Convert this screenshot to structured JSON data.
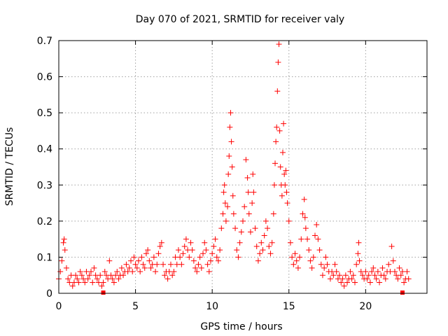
{
  "chart_data": {
    "type": "scatter",
    "title": "Day 070 of 2021, SRMTID for receiver valy",
    "xlabel": "GPS time / hours",
    "ylabel": "SRMTID / TECUs",
    "xlim": [
      0,
      24
    ],
    "ylim": [
      0,
      0.7
    ],
    "xticks": [
      0,
      5,
      10,
      15,
      20
    ],
    "xtick_labels": [
      "0",
      "5",
      "10",
      "15",
      "20"
    ],
    "yticks": [
      0,
      0.1,
      0.2,
      0.3,
      0.4,
      0.5,
      0.6,
      0.7
    ],
    "ytick_labels": [
      "0",
      "0.1",
      "0.2",
      "0.3",
      "0.4",
      "0.5",
      "0.6",
      "0.7"
    ],
    "grid": true,
    "marker": "plus",
    "color": "#ff0000",
    "series": [
      {
        "name": "SRMTID",
        "points": [
          [
            0.0,
            0.04
          ],
          [
            0.1,
            0.06
          ],
          [
            0.2,
            0.09
          ],
          [
            0.3,
            0.14
          ],
          [
            0.35,
            0.15
          ],
          [
            0.4,
            0.12
          ],
          [
            0.5,
            0.07
          ],
          [
            0.6,
            0.04
          ],
          [
            0.7,
            0.03
          ],
          [
            0.8,
            0.05
          ],
          [
            0.9,
            0.02
          ],
          [
            1.0,
            0.03
          ],
          [
            1.1,
            0.05
          ],
          [
            1.2,
            0.04
          ],
          [
            1.3,
            0.03
          ],
          [
            1.4,
            0.06
          ],
          [
            1.5,
            0.05
          ],
          [
            1.6,
            0.04
          ],
          [
            1.7,
            0.03
          ],
          [
            1.8,
            0.06
          ],
          [
            1.9,
            0.04
          ],
          [
            2.0,
            0.05
          ],
          [
            2.1,
            0.06
          ],
          [
            2.2,
            0.03
          ],
          [
            2.3,
            0.07
          ],
          [
            2.4,
            0.05
          ],
          [
            2.5,
            0.04
          ],
          [
            2.6,
            0.03
          ],
          [
            2.7,
            0.05
          ],
          [
            2.8,
            0.02
          ],
          [
            2.9,
            0.03
          ],
          [
            3.0,
            0.06
          ],
          [
            3.1,
            0.05
          ],
          [
            3.2,
            0.04
          ],
          [
            3.3,
            0.09
          ],
          [
            3.4,
            0.05
          ],
          [
            3.5,
            0.04
          ],
          [
            3.6,
            0.03
          ],
          [
            3.7,
            0.05
          ],
          [
            3.8,
            0.06
          ],
          [
            3.9,
            0.04
          ],
          [
            4.0,
            0.05
          ],
          [
            4.1,
            0.07
          ],
          [
            4.2,
            0.05
          ],
          [
            4.3,
            0.06
          ],
          [
            4.4,
            0.08
          ],
          [
            4.5,
            0.06
          ],
          [
            4.6,
            0.07
          ],
          [
            4.7,
            0.09
          ],
          [
            4.8,
            0.06
          ],
          [
            4.9,
            0.1
          ],
          [
            5.0,
            0.08
          ],
          [
            5.1,
            0.07
          ],
          [
            5.2,
            0.09
          ],
          [
            5.3,
            0.06
          ],
          [
            5.4,
            0.1
          ],
          [
            5.5,
            0.08
          ],
          [
            5.6,
            0.07
          ],
          [
            5.7,
            0.11
          ],
          [
            5.8,
            0.12
          ],
          [
            5.9,
            0.09
          ],
          [
            6.0,
            0.07
          ],
          [
            6.1,
            0.08
          ],
          [
            6.2,
            0.1
          ],
          [
            6.3,
            0.06
          ],
          [
            6.4,
            0.08
          ],
          [
            6.5,
            0.11
          ],
          [
            6.6,
            0.13
          ],
          [
            6.7,
            0.14
          ],
          [
            6.8,
            0.08
          ],
          [
            6.9,
            0.05
          ],
          [
            7.0,
            0.06
          ],
          [
            7.1,
            0.04
          ],
          [
            7.2,
            0.06
          ],
          [
            7.3,
            0.08
          ],
          [
            7.4,
            0.05
          ],
          [
            7.5,
            0.06
          ],
          [
            7.6,
            0.1
          ],
          [
            7.7,
            0.08
          ],
          [
            7.8,
            0.12
          ],
          [
            7.9,
            0.1
          ],
          [
            8.0,
            0.08
          ],
          [
            8.1,
            0.11
          ],
          [
            8.2,
            0.13
          ],
          [
            8.3,
            0.15
          ],
          [
            8.4,
            0.12
          ],
          [
            8.5,
            0.1
          ],
          [
            8.6,
            0.14
          ],
          [
            8.7,
            0.12
          ],
          [
            8.8,
            0.09
          ],
          [
            8.9,
            0.07
          ],
          [
            9.0,
            0.06
          ],
          [
            9.1,
            0.08
          ],
          [
            9.2,
            0.1
          ],
          [
            9.3,
            0.07
          ],
          [
            9.4,
            0.11
          ],
          [
            9.5,
            0.14
          ],
          [
            9.6,
            0.12
          ],
          [
            9.7,
            0.08
          ],
          [
            9.8,
            0.06
          ],
          [
            9.9,
            0.09
          ],
          [
            10.0,
            0.11
          ],
          [
            10.1,
            0.13
          ],
          [
            10.2,
            0.15
          ],
          [
            10.3,
            0.1
          ],
          [
            10.4,
            0.09
          ],
          [
            10.5,
            0.12
          ],
          [
            10.6,
            0.18
          ],
          [
            10.7,
            0.22
          ],
          [
            10.75,
            0.28
          ],
          [
            10.8,
            0.3
          ],
          [
            10.85,
            0.25
          ],
          [
            10.9,
            0.2
          ],
          [
            11.0,
            0.24
          ],
          [
            11.05,
            0.33
          ],
          [
            11.1,
            0.38
          ],
          [
            11.15,
            0.46
          ],
          [
            11.2,
            0.5
          ],
          [
            11.25,
            0.42
          ],
          [
            11.3,
            0.35
          ],
          [
            11.35,
            0.27
          ],
          [
            11.4,
            0.22
          ],
          [
            11.5,
            0.18
          ],
          [
            11.6,
            0.12
          ],
          [
            11.7,
            0.1
          ],
          [
            11.8,
            0.14
          ],
          [
            11.9,
            0.17
          ],
          [
            12.0,
            0.2
          ],
          [
            12.1,
            0.24
          ],
          [
            12.2,
            0.37
          ],
          [
            12.3,
            0.32
          ],
          [
            12.35,
            0.28
          ],
          [
            12.4,
            0.22
          ],
          [
            12.5,
            0.17
          ],
          [
            12.6,
            0.25
          ],
          [
            12.65,
            0.33
          ],
          [
            12.7,
            0.28
          ],
          [
            12.8,
            0.18
          ],
          [
            12.9,
            0.13
          ],
          [
            13.0,
            0.09
          ],
          [
            13.1,
            0.11
          ],
          [
            13.2,
            0.14
          ],
          [
            13.3,
            0.12
          ],
          [
            13.4,
            0.16
          ],
          [
            13.5,
            0.2
          ],
          [
            13.6,
            0.18
          ],
          [
            13.7,
            0.13
          ],
          [
            13.8,
            0.11
          ],
          [
            13.9,
            0.14
          ],
          [
            14.0,
            0.22
          ],
          [
            14.05,
            0.3
          ],
          [
            14.1,
            0.36
          ],
          [
            14.15,
            0.42
          ],
          [
            14.2,
            0.46
          ],
          [
            14.25,
            0.56
          ],
          [
            14.3,
            0.64
          ],
          [
            14.35,
            0.69
          ],
          [
            14.4,
            0.45
          ],
          [
            14.45,
            0.35
          ],
          [
            14.5,
            0.3
          ],
          [
            14.55,
            0.27
          ],
          [
            14.6,
            0.39
          ],
          [
            14.65,
            0.47
          ],
          [
            14.7,
            0.33
          ],
          [
            14.75,
            0.3
          ],
          [
            14.8,
            0.34
          ],
          [
            14.85,
            0.28
          ],
          [
            14.9,
            0.25
          ],
          [
            15.0,
            0.2
          ],
          [
            15.1,
            0.14
          ],
          [
            15.2,
            0.1
          ],
          [
            15.3,
            0.08
          ],
          [
            15.4,
            0.11
          ],
          [
            15.5,
            0.09
          ],
          [
            15.6,
            0.07
          ],
          [
            15.7,
            0.1
          ],
          [
            15.8,
            0.15
          ],
          [
            15.9,
            0.22
          ],
          [
            16.0,
            0.26
          ],
          [
            16.05,
            0.21
          ],
          [
            16.1,
            0.18
          ],
          [
            16.2,
            0.15
          ],
          [
            16.3,
            0.12
          ],
          [
            16.4,
            0.09
          ],
          [
            16.5,
            0.07
          ],
          [
            16.6,
            0.1
          ],
          [
            16.7,
            0.16
          ],
          [
            16.8,
            0.19
          ],
          [
            16.9,
            0.15
          ],
          [
            17.0,
            0.12
          ],
          [
            17.1,
            0.08
          ],
          [
            17.2,
            0.05
          ],
          [
            17.3,
            0.07
          ],
          [
            17.4,
            0.1
          ],
          [
            17.5,
            0.08
          ],
          [
            17.6,
            0.06
          ],
          [
            17.7,
            0.04
          ],
          [
            17.8,
            0.06
          ],
          [
            17.9,
            0.05
          ],
          [
            18.0,
            0.08
          ],
          [
            18.1,
            0.06
          ],
          [
            18.2,
            0.04
          ],
          [
            18.3,
            0.05
          ],
          [
            18.4,
            0.03
          ],
          [
            18.5,
            0.04
          ],
          [
            18.6,
            0.02
          ],
          [
            18.7,
            0.05
          ],
          [
            18.8,
            0.03
          ],
          [
            18.9,
            0.04
          ],
          [
            19.0,
            0.06
          ],
          [
            19.1,
            0.04
          ],
          [
            19.2,
            0.05
          ],
          [
            19.3,
            0.03
          ],
          [
            19.4,
            0.08
          ],
          [
            19.5,
            0.11
          ],
          [
            19.55,
            0.14
          ],
          [
            19.6,
            0.09
          ],
          [
            19.7,
            0.06
          ],
          [
            19.8,
            0.05
          ],
          [
            19.9,
            0.04
          ],
          [
            20.0,
            0.06
          ],
          [
            20.1,
            0.04
          ],
          [
            20.2,
            0.05
          ],
          [
            20.3,
            0.03
          ],
          [
            20.4,
            0.06
          ],
          [
            20.5,
            0.07
          ],
          [
            20.6,
            0.05
          ],
          [
            20.7,
            0.04
          ],
          [
            20.8,
            0.06
          ],
          [
            20.9,
            0.03
          ],
          [
            21.0,
            0.05
          ],
          [
            21.1,
            0.07
          ],
          [
            21.2,
            0.05
          ],
          [
            21.3,
            0.04
          ],
          [
            21.4,
            0.06
          ],
          [
            21.5,
            0.08
          ],
          [
            21.6,
            0.06
          ],
          [
            21.7,
            0.13
          ],
          [
            21.8,
            0.09
          ],
          [
            21.9,
            0.06
          ],
          [
            22.0,
            0.05
          ],
          [
            22.1,
            0.04
          ],
          [
            22.2,
            0.07
          ],
          [
            22.3,
            0.05
          ],
          [
            22.4,
            0.06
          ],
          [
            22.5,
            0.03
          ],
          [
            22.6,
            0.04
          ],
          [
            22.7,
            0.06
          ],
          [
            22.8,
            0.04
          ]
        ]
      }
    ],
    "ticks_marks": [
      {
        "x": 2.9,
        "y": 0
      },
      {
        "x": 22.4,
        "y": 0
      }
    ]
  }
}
